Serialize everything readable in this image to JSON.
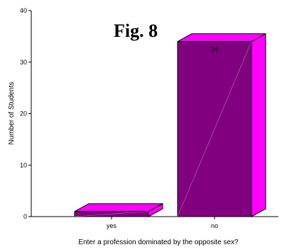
{
  "chart_data": {
    "type": "bar",
    "title": "Fig. 8",
    "xlabel": "Enter a profession dominated by the opposite sex?",
    "ylabel": "Number of Students",
    "categories": [
      "yes",
      "no"
    ],
    "values": [
      1,
      34
    ],
    "data_labels": [
      "",
      "34"
    ],
    "ylim": [
      0,
      40
    ],
    "yticks": [
      0,
      10,
      20,
      30,
      40
    ],
    "grid": false,
    "legend": "none",
    "colors": {
      "front": "#800080",
      "side": "#ff00ff",
      "top": "#ff00ff",
      "outline": "#000000"
    }
  }
}
